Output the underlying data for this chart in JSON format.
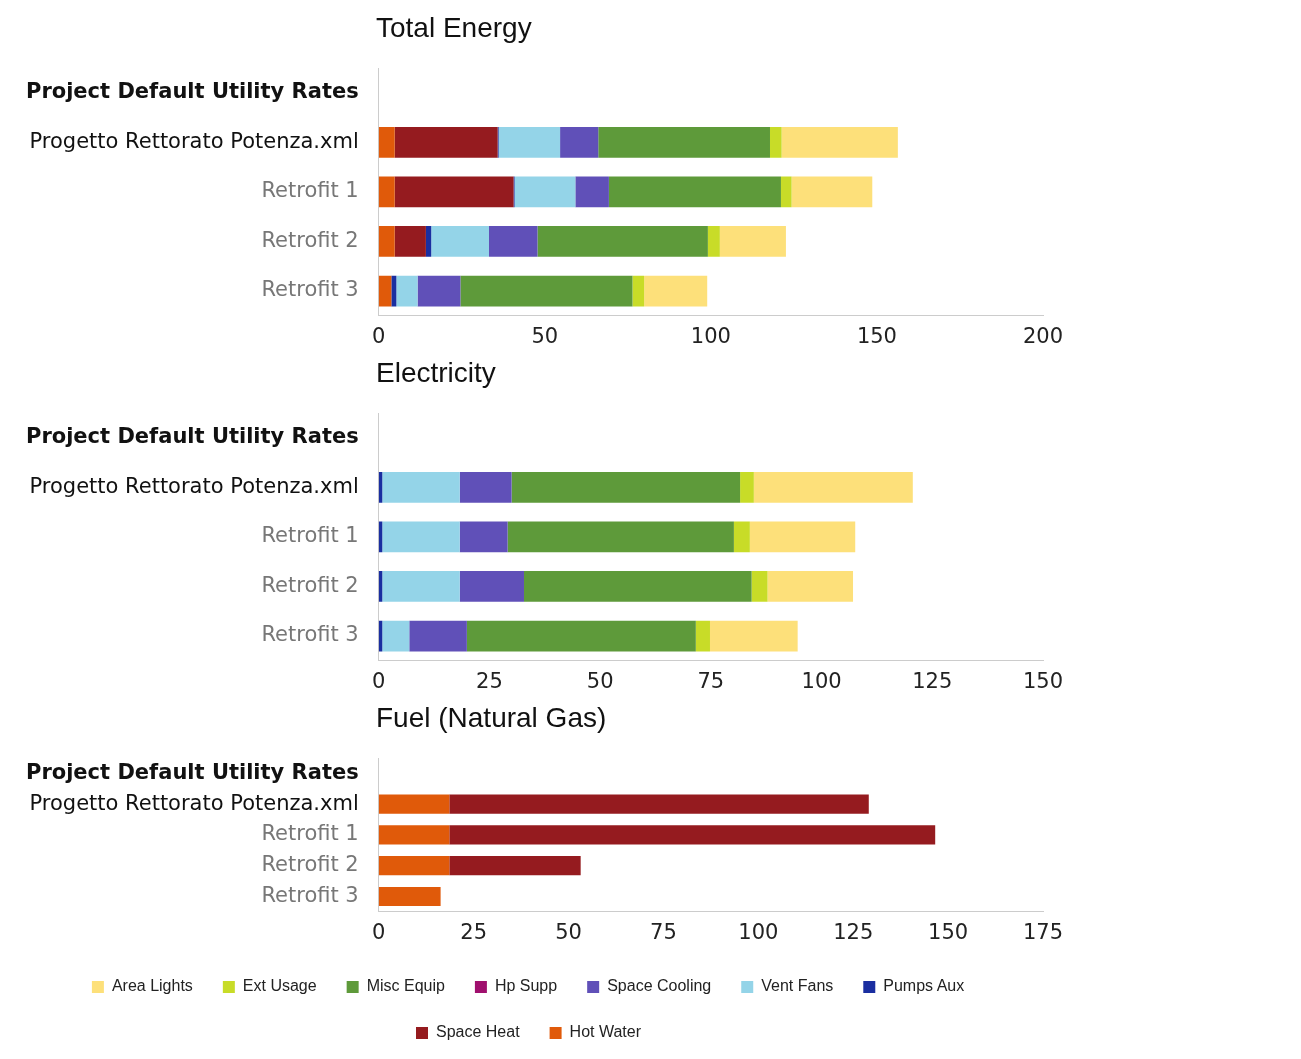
{
  "chart_data": [
    {
      "type": "bar",
      "title": "Total Energy",
      "orientation": "horizontal",
      "stacked": true,
      "categories": [
        "Project Default Utility Rates",
        "Progetto Rettorato Potenza.xml",
        "Retrofit 1",
        "Retrofit 2",
        "Retrofit 3"
      ],
      "xlim": [
        0,
        200
      ],
      "xticks": [
        0,
        50,
        100,
        150,
        200
      ],
      "grid": false,
      "series": [
        {
          "color": "#e05a0a",
          "values": [
            null,
            4.8,
            4.8,
            4.8,
            3.8
          ]
        },
        {
          "color": "#951b1f",
          "values": [
            null,
            31,
            35.8,
            9.4,
            0
          ]
        },
        {
          "color": "#1a2ea0",
          "values": [
            null,
            0.3,
            0.3,
            1.6,
            1.5
          ]
        },
        {
          "color": "#94d4e8",
          "values": [
            null,
            18.5,
            18.3,
            17.4,
            6.4
          ]
        },
        {
          "color": "#6050b8",
          "values": [
            null,
            11.5,
            10.1,
            14.6,
            12.9
          ]
        },
        {
          "color": "#5e9a3a",
          "values": [
            null,
            51.7,
            51.8,
            51.3,
            51.8
          ]
        },
        {
          "color": "#c8dc28",
          "values": [
            null,
            3.5,
            3.2,
            3.6,
            3.5
          ]
        },
        {
          "color": "#fde07a",
          "values": [
            null,
            35,
            24.3,
            19.9,
            19
          ]
        }
      ]
    },
    {
      "type": "bar",
      "title": "Electricity",
      "orientation": "horizontal",
      "stacked": true,
      "categories": [
        "Project Default Utility Rates",
        "Progetto Rettorato Potenza.xml",
        "Retrofit 1",
        "Retrofit 2",
        "Retrofit 3"
      ],
      "xlim": [
        0,
        150
      ],
      "xticks": [
        0,
        25,
        50,
        75,
        100,
        125,
        150
      ],
      "grid": false,
      "series": [
        {
          "color": "#1a2ea0",
          "values": [
            null,
            0.8,
            0.8,
            0.8,
            0.8
          ]
        },
        {
          "color": "#94d4e8",
          "values": [
            null,
            17.5,
            17.5,
            17.5,
            6.1
          ]
        },
        {
          "color": "#6050b8",
          "values": [
            null,
            11.7,
            10.8,
            14.5,
            13
          ]
        },
        {
          "color": "#5e9a3a",
          "values": [
            null,
            51.6,
            51.1,
            51.4,
            51.7
          ]
        },
        {
          "color": "#c8dc28",
          "values": [
            null,
            3.1,
            3.6,
            3.6,
            3.2
          ]
        },
        {
          "color": "#fde07a",
          "values": [
            null,
            35.9,
            23.8,
            19.3,
            19.8
          ]
        }
      ]
    },
    {
      "type": "bar",
      "title": "Fuel (Natural Gas)",
      "orientation": "horizontal",
      "stacked": true,
      "categories": [
        "Project Default Utility Rates",
        "Progetto Rettorato Potenza.xml",
        "Retrofit 1",
        "Retrofit 2",
        "Retrofit 3"
      ],
      "xlim": [
        0,
        175
      ],
      "xticks": [
        0,
        25,
        50,
        75,
        100,
        125,
        150,
        175
      ],
      "grid": false,
      "legend": "bottom",
      "series": [
        {
          "name": "Hot Water",
          "color": "#e05a0a",
          "values": [
            null,
            18.6,
            18.6,
            18.6,
            16.3
          ]
        },
        {
          "name": "Space Heat",
          "color": "#951b1f",
          "values": [
            null,
            110.5,
            128,
            34.6,
            null
          ]
        },
        {
          "name": "Pumps Aux",
          "color": "#1a2ea0",
          "values": [
            null,
            null,
            null,
            null,
            null
          ]
        },
        {
          "name": "Vent Fans",
          "color": "#94d4e8",
          "values": [
            null,
            null,
            null,
            null,
            null
          ]
        },
        {
          "name": "Space Cooling",
          "color": "#6050b8",
          "values": [
            null,
            null,
            null,
            null,
            null
          ]
        },
        {
          "name": "Hp Supp",
          "color": "#a0106e",
          "values": [
            null,
            null,
            null,
            null,
            null
          ]
        },
        {
          "name": "Misc Equip",
          "color": "#5e9a3a",
          "values": [
            null,
            null,
            null,
            null,
            null
          ]
        },
        {
          "name": "Ext Usage",
          "color": "#c8dc28",
          "values": [
            null,
            null,
            null,
            null,
            null
          ]
        },
        {
          "name": "Area Lights",
          "color": "#fde07a",
          "values": [
            null,
            null,
            null,
            null,
            null
          ]
        }
      ]
    }
  ]
}
